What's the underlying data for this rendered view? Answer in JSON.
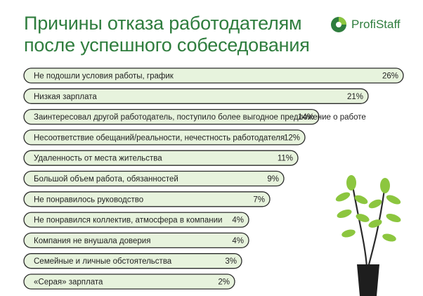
{
  "title": {
    "line1": "Причины отказа работодателям",
    "line2": "после успешного собеседования"
  },
  "logo": {
    "text": "ProfiStaff",
    "icon": "profistaff-logo-icon"
  },
  "colors": {
    "title": "#2f7d3e",
    "bar_fill": "#e7f3dd",
    "bar_stroke": "#2b2b2b",
    "plant_leaf": "#8cc63f",
    "plant_stem": "#2b2b2b",
    "pot": "#1e1e1e"
  },
  "chart_data": {
    "type": "bar",
    "orientation": "horizontal",
    "categories": [
      "Не подошли условия работы, график",
      "Низкая зарплата",
      "Заинтересовал другой работодатель, поступило более выгодное предложение о работе",
      "Несоответствие обещаний/реальности, нечестность работодателя",
      "Удаленность от места жительства",
      "Большой объем работа, обязанностей",
      "Не понравилось руководство",
      "Не понравился коллектив, атмосфера в компании",
      "Компания не внушала доверия",
      "Семейные и личные обстоятельства",
      "«Серая» зарплата"
    ],
    "values": [
      26,
      21,
      14,
      12,
      11,
      9,
      7,
      4,
      4,
      3,
      2
    ],
    "value_labels": [
      "26%",
      "21%",
      "14%",
      "12%",
      "11%",
      "9%",
      "7%",
      "4%",
      "4%",
      "3%",
      "2%"
    ],
    "unit": "%"
  }
}
